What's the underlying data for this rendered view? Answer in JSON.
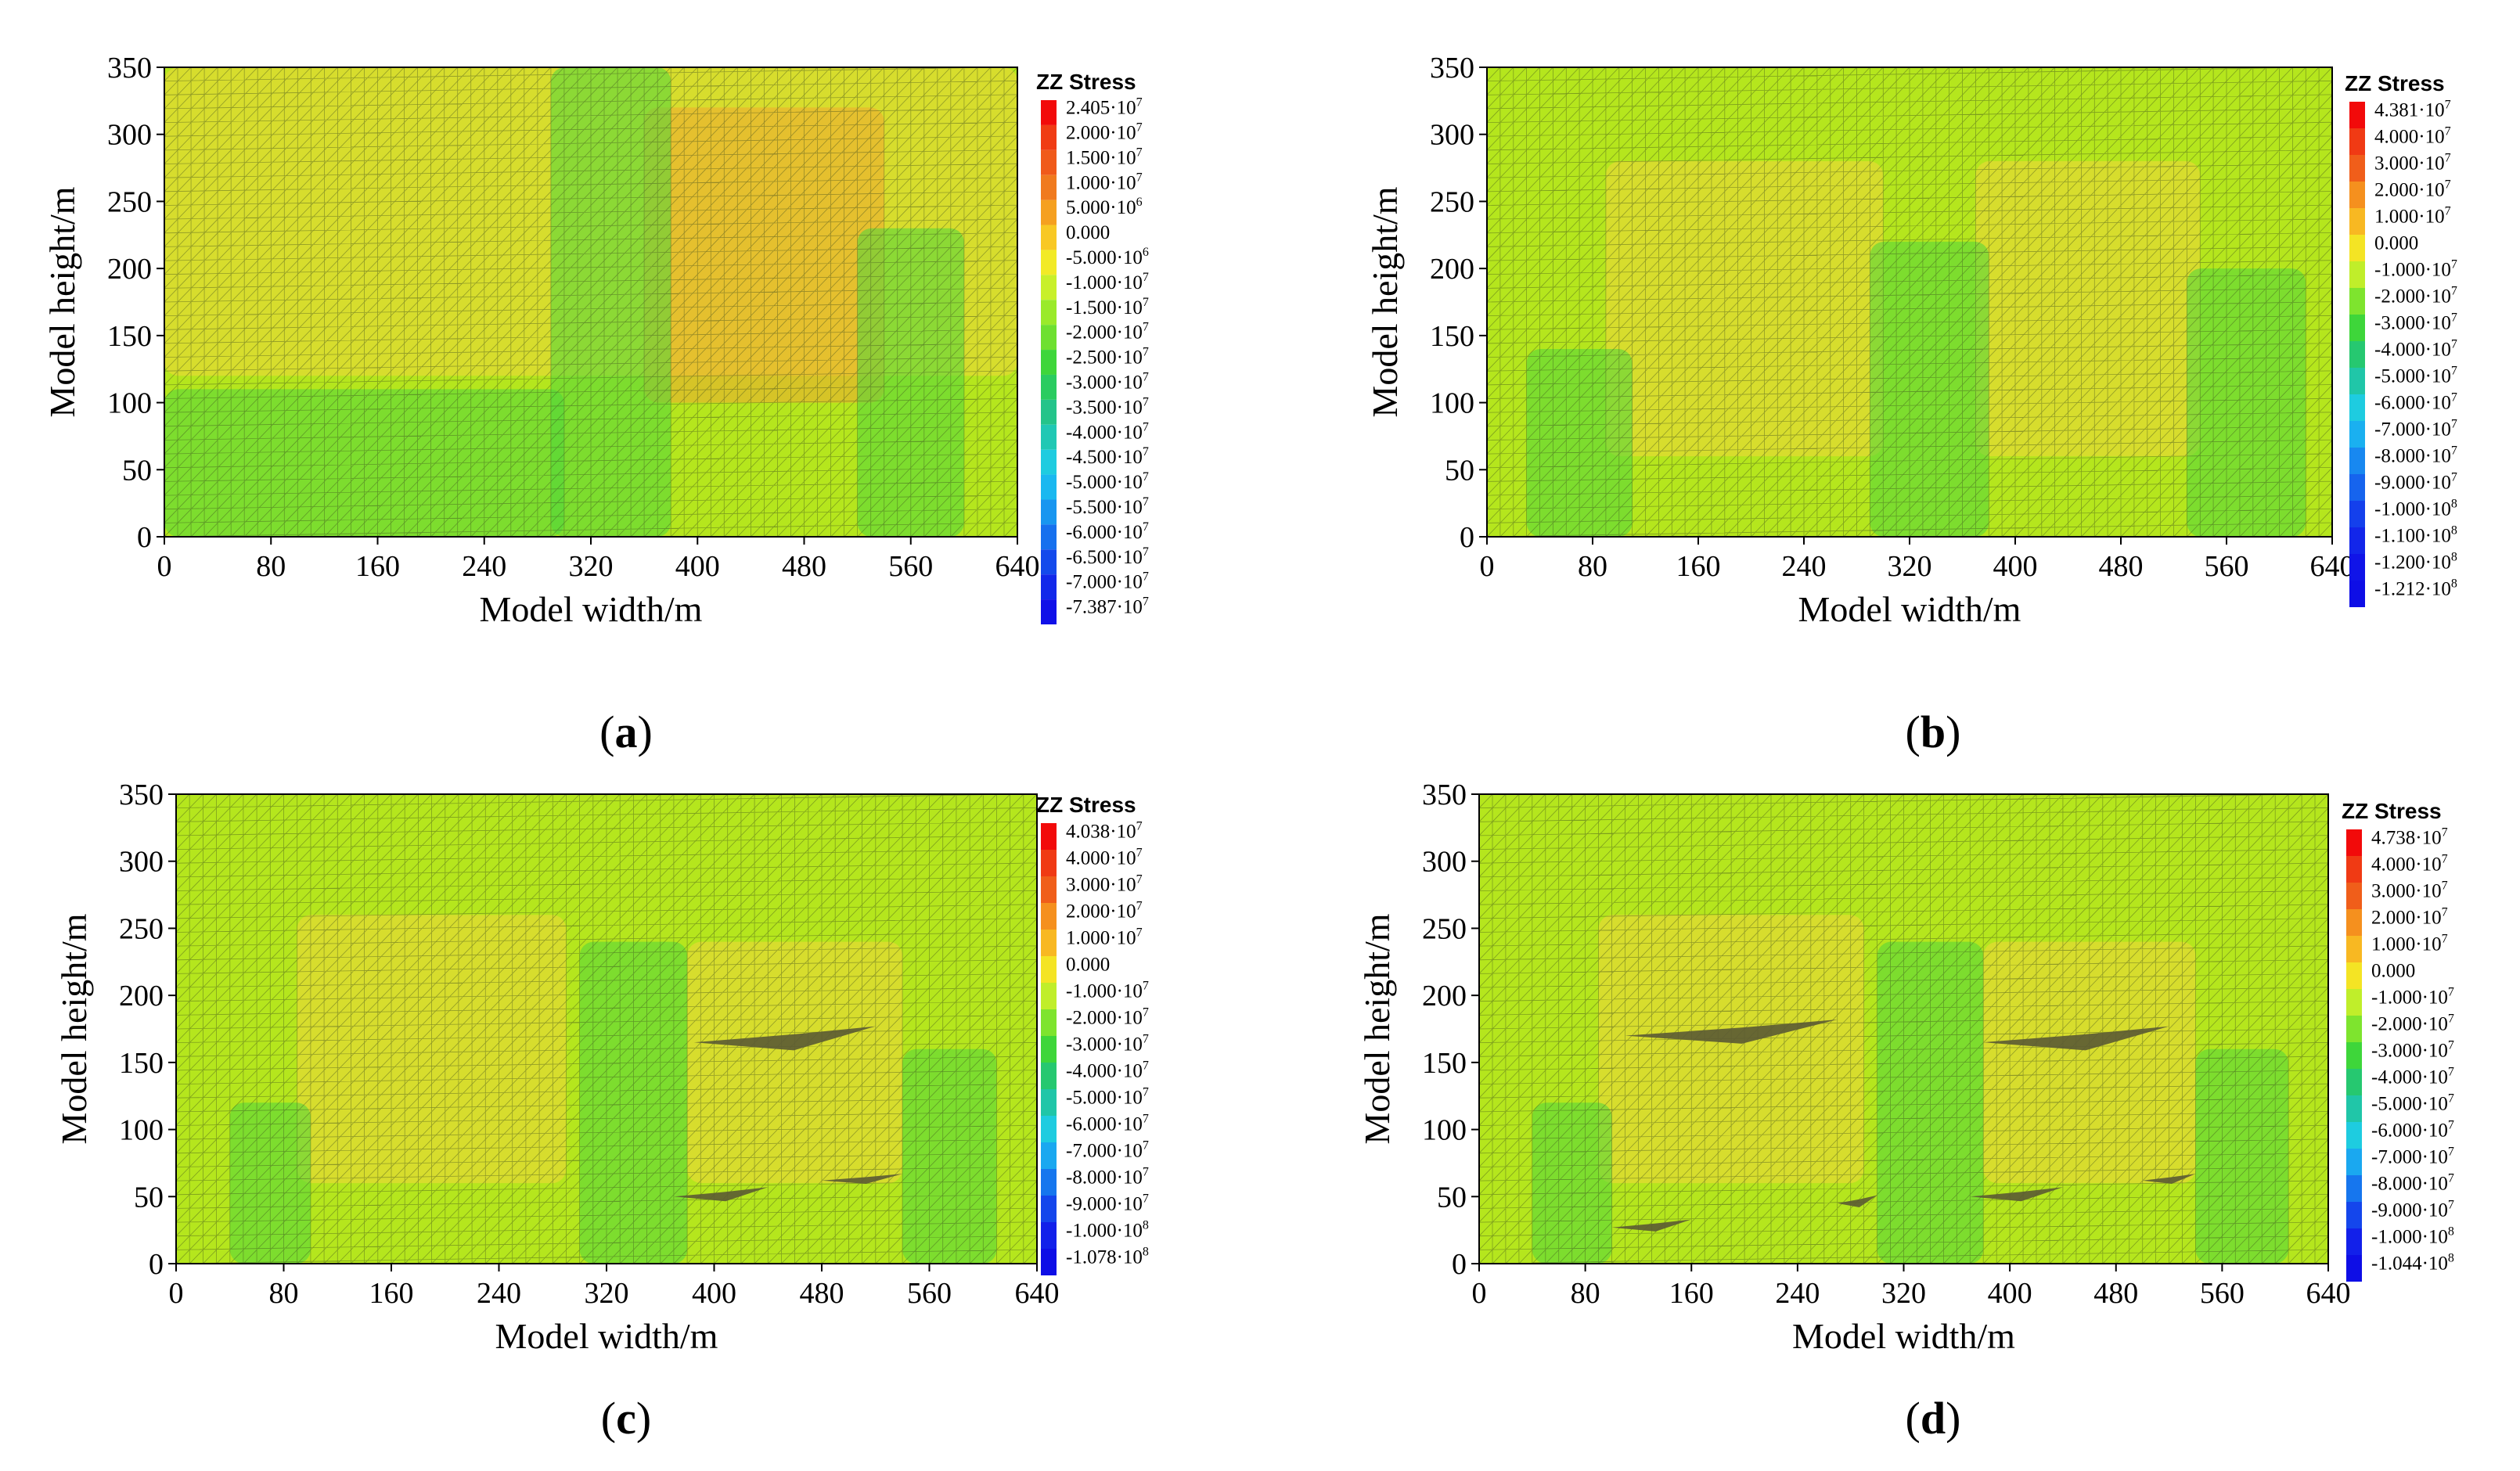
{
  "figure": {
    "background_color": "#ffffff",
    "colors": {
      "field_base": "#b5e61d",
      "field_warm": "#f3d63a",
      "field_hot": "#f0a830",
      "field_cool": "#4fd63c",
      "mesh": "#3a4a20",
      "void": "#5b5a34"
    }
  },
  "chart_data": [
    {
      "id": "a",
      "type": "heatmap",
      "caption_open": "(",
      "caption_letter": "a",
      "caption_close": ")",
      "xlabel": "Model width/m",
      "ylabel": "Model height/m",
      "xlim": [
        0,
        640
      ],
      "ylim": [
        0,
        350
      ],
      "x_ticks": [
        "0",
        "80",
        "160",
        "240",
        "320",
        "400",
        "480",
        "560",
        "640"
      ],
      "y_ticks": [
        "0",
        "50",
        "100",
        "150",
        "200",
        "250",
        "300",
        "350"
      ],
      "legend": {
        "title": "ZZ Stress",
        "labels": [
          {
            "mant": "2.405·10",
            "exp": "7",
            "color": "#f20a0a"
          },
          {
            "mant": "2.000·10",
            "exp": "7",
            "color": "#f03c14"
          },
          {
            "mant": "1.500·10",
            "exp": "7",
            "color": "#f05a1a"
          },
          {
            "mant": "1.000·10",
            "exp": "7",
            "color": "#f07a1e"
          },
          {
            "mant": "5.000·10",
            "exp": "6",
            "color": "#f5a020"
          },
          {
            "mant": "0.000",
            "exp": "",
            "color": "#f8c824"
          },
          {
            "mant": "-5.000·10",
            "exp": "6",
            "color": "#f2ea26"
          },
          {
            "mant": "-1.000·10",
            "exp": "7",
            "color": "#c8f02a"
          },
          {
            "mant": "-1.500·10",
            "exp": "7",
            "color": "#9aea2a"
          },
          {
            "mant": "-2.000·10",
            "exp": "7",
            "color": "#6ee030"
          },
          {
            "mant": "-2.500·10",
            "exp": "7",
            "color": "#3ed63a"
          },
          {
            "mant": "-3.000·10",
            "exp": "7",
            "color": "#2acc60"
          },
          {
            "mant": "-3.500·10",
            "exp": "7",
            "color": "#24c48a"
          },
          {
            "mant": "-4.000·10",
            "exp": "7",
            "color": "#20c8b4"
          },
          {
            "mant": "-4.500·10",
            "exp": "7",
            "color": "#1ecce0"
          },
          {
            "mant": "-5.000·10",
            "exp": "7",
            "color": "#1ab8f0"
          },
          {
            "mant": "-5.500·10",
            "exp": "7",
            "color": "#1896f0"
          },
          {
            "mant": "-6.000·10",
            "exp": "7",
            "color": "#1670ee"
          },
          {
            "mant": "-6.500·10",
            "exp": "7",
            "color": "#144aec"
          },
          {
            "mant": "-7.000·10",
            "exp": "7",
            "color": "#1228ea"
          },
          {
            "mant": "-7.387·10",
            "exp": "7",
            "color": "#1010e8"
          }
        ]
      },
      "zones": [
        {
          "x0": 0,
          "x1": 640,
          "y0": 120,
          "y1": 350,
          "t": "warm"
        },
        {
          "x0": 360,
          "x1": 540,
          "y0": 100,
          "y1": 320,
          "t": "hot"
        },
        {
          "x0": 290,
          "x1": 380,
          "y0": 0,
          "y1": 350,
          "t": "cool"
        },
        {
          "x0": 520,
          "x1": 600,
          "y0": 0,
          "y1": 230,
          "t": "cool"
        },
        {
          "x0": 0,
          "x1": 300,
          "y0": 0,
          "y1": 110,
          "t": "cool"
        }
      ],
      "voids": []
    },
    {
      "id": "b",
      "type": "heatmap",
      "caption_open": "(",
      "caption_letter": "b",
      "caption_close": ")",
      "xlabel": "Model width/m",
      "ylabel": "Model height/m",
      "xlim": [
        0,
        640
      ],
      "ylim": [
        0,
        350
      ],
      "x_ticks": [
        "0",
        "80",
        "160",
        "240",
        "320",
        "400",
        "480",
        "560",
        "640"
      ],
      "y_ticks": [
        "0",
        "50",
        "100",
        "150",
        "200",
        "250",
        "300",
        "350"
      ],
      "legend": {
        "title": "ZZ Stress",
        "labels": [
          {
            "mant": "4.381·10",
            "exp": "7",
            "color": "#f20a0a"
          },
          {
            "mant": "4.000·10",
            "exp": "7",
            "color": "#f03a14"
          },
          {
            "mant": "3.000·10",
            "exp": "7",
            "color": "#f05e1a"
          },
          {
            "mant": "2.000·10",
            "exp": "7",
            "color": "#f5901e"
          },
          {
            "mant": "1.000·10",
            "exp": "7",
            "color": "#f8b822"
          },
          {
            "mant": "0.000",
            "exp": "",
            "color": "#f4e424"
          },
          {
            "mant": "-1.000·10",
            "exp": "7",
            "color": "#c0ee2a"
          },
          {
            "mant": "-2.000·10",
            "exp": "7",
            "color": "#7ee42e"
          },
          {
            "mant": "-3.000·10",
            "exp": "7",
            "color": "#3ed63a"
          },
          {
            "mant": "-4.000·10",
            "exp": "7",
            "color": "#26c870"
          },
          {
            "mant": "-5.000·10",
            "exp": "7",
            "color": "#20c6a8"
          },
          {
            "mant": "-6.000·10",
            "exp": "7",
            "color": "#1ecce0"
          },
          {
            "mant": "-7.000·10",
            "exp": "7",
            "color": "#1ab0f0"
          },
          {
            "mant": "-8.000·10",
            "exp": "7",
            "color": "#1888f0"
          },
          {
            "mant": "-9.000·10",
            "exp": "7",
            "color": "#1664ee"
          },
          {
            "mant": "-1.000·10",
            "exp": "8",
            "color": "#1440ec"
          },
          {
            "mant": "-1.100·10",
            "exp": "8",
            "color": "#1226ea"
          },
          {
            "mant": "-1.200·10",
            "exp": "8",
            "color": "#1014e8"
          },
          {
            "mant": "-1.212·10",
            "exp": "8",
            "color": "#0e0ee6"
          }
        ]
      },
      "zones": [
        {
          "x0": 90,
          "x1": 300,
          "y0": 60,
          "y1": 280,
          "t": "warm"
        },
        {
          "x0": 370,
          "x1": 540,
          "y0": 60,
          "y1": 280,
          "t": "warm"
        },
        {
          "x0": 290,
          "x1": 380,
          "y0": 0,
          "y1": 220,
          "t": "cool"
        },
        {
          "x0": 30,
          "x1": 110,
          "y0": 0,
          "y1": 140,
          "t": "cool"
        },
        {
          "x0": 530,
          "x1": 620,
          "y0": 0,
          "y1": 200,
          "t": "cool"
        }
      ],
      "voids": []
    },
    {
      "id": "c",
      "type": "heatmap",
      "caption_open": "(",
      "caption_letter": "c",
      "caption_close": ")",
      "xlabel": "Model width/m",
      "ylabel": "Model height/m",
      "xlim": [
        0,
        640
      ],
      "ylim": [
        0,
        350
      ],
      "x_ticks": [
        "0",
        "80",
        "160",
        "240",
        "320",
        "400",
        "480",
        "560",
        "640"
      ],
      "y_ticks": [
        "0",
        "50",
        "100",
        "150",
        "200",
        "250",
        "300",
        "350"
      ],
      "legend": {
        "title": "ZZ Stress",
        "labels": [
          {
            "mant": "4.038·10",
            "exp": "7",
            "color": "#f20a0a"
          },
          {
            "mant": "4.000·10",
            "exp": "7",
            "color": "#f03a14"
          },
          {
            "mant": "3.000·10",
            "exp": "7",
            "color": "#f05e1a"
          },
          {
            "mant": "2.000·10",
            "exp": "7",
            "color": "#f5901e"
          },
          {
            "mant": "1.000·10",
            "exp": "7",
            "color": "#f8b822"
          },
          {
            "mant": "0.000",
            "exp": "",
            "color": "#f4e424"
          },
          {
            "mant": "-1.000·10",
            "exp": "7",
            "color": "#c0ee2a"
          },
          {
            "mant": "-2.000·10",
            "exp": "7",
            "color": "#7ee42e"
          },
          {
            "mant": "-3.000·10",
            "exp": "7",
            "color": "#3ed63a"
          },
          {
            "mant": "-4.000·10",
            "exp": "7",
            "color": "#26c870"
          },
          {
            "mant": "-5.000·10",
            "exp": "7",
            "color": "#20c6a8"
          },
          {
            "mant": "-6.000·10",
            "exp": "7",
            "color": "#1ecce0"
          },
          {
            "mant": "-7.000·10",
            "exp": "7",
            "color": "#1aa8f0"
          },
          {
            "mant": "-8.000·10",
            "exp": "7",
            "color": "#1676ee"
          },
          {
            "mant": "-9.000·10",
            "exp": "7",
            "color": "#1446ec"
          },
          {
            "mant": "-1.000·10",
            "exp": "8",
            "color": "#1220ea"
          },
          {
            "mant": "-1.078·10",
            "exp": "8",
            "color": "#0e0ee6"
          }
        ]
      },
      "zones": [
        {
          "x0": 90,
          "x1": 290,
          "y0": 60,
          "y1": 260,
          "t": "warm"
        },
        {
          "x0": 380,
          "x1": 540,
          "y0": 60,
          "y1": 240,
          "t": "warm"
        },
        {
          "x0": 300,
          "x1": 380,
          "y0": 0,
          "y1": 240,
          "t": "cool"
        },
        {
          "x0": 40,
          "x1": 100,
          "y0": 0,
          "y1": 120,
          "t": "cool"
        },
        {
          "x0": 540,
          "x1": 610,
          "y0": 0,
          "y1": 160,
          "t": "cool"
        }
      ],
      "voids": [
        {
          "x0": 385,
          "x1": 520,
          "y": 165,
          "h": 12
        },
        {
          "x0": 370,
          "x1": 440,
          "y": 50,
          "h": 7
        },
        {
          "x0": 480,
          "x1": 540,
          "y": 62,
          "h": 5
        }
      ]
    },
    {
      "id": "d",
      "type": "heatmap",
      "caption_open": "(",
      "caption_letter": "d",
      "caption_close": ")",
      "xlabel": "Model width/m",
      "ylabel": "Model height/m",
      "xlim": [
        0,
        640
      ],
      "ylim": [
        0,
        350
      ],
      "x_ticks": [
        "0",
        "80",
        "160",
        "240",
        "320",
        "400",
        "480",
        "560",
        "640"
      ],
      "y_ticks": [
        "0",
        "50",
        "100",
        "150",
        "200",
        "250",
        "300",
        "350"
      ],
      "legend": {
        "title": "ZZ Stress",
        "labels": [
          {
            "mant": "4.738·10",
            "exp": "7",
            "color": "#f20a0a"
          },
          {
            "mant": "4.000·10",
            "exp": "7",
            "color": "#f03a14"
          },
          {
            "mant": "3.000·10",
            "exp": "7",
            "color": "#f05e1a"
          },
          {
            "mant": "2.000·10",
            "exp": "7",
            "color": "#f5901e"
          },
          {
            "mant": "1.000·10",
            "exp": "7",
            "color": "#f8b822"
          },
          {
            "mant": "0.000",
            "exp": "",
            "color": "#f4e424"
          },
          {
            "mant": "-1.000·10",
            "exp": "7",
            "color": "#c0ee2a"
          },
          {
            "mant": "-2.000·10",
            "exp": "7",
            "color": "#7ee42e"
          },
          {
            "mant": "-3.000·10",
            "exp": "7",
            "color": "#3ed63a"
          },
          {
            "mant": "-4.000·10",
            "exp": "7",
            "color": "#26c870"
          },
          {
            "mant": "-5.000·10",
            "exp": "7",
            "color": "#20c6a8"
          },
          {
            "mant": "-6.000·10",
            "exp": "7",
            "color": "#1ecce0"
          },
          {
            "mant": "-7.000·10",
            "exp": "7",
            "color": "#1aa8f0"
          },
          {
            "mant": "-8.000·10",
            "exp": "7",
            "color": "#1676ee"
          },
          {
            "mant": "-9.000·10",
            "exp": "7",
            "color": "#1446ec"
          },
          {
            "mant": "-1.000·10",
            "exp": "8",
            "color": "#1220ea"
          },
          {
            "mant": "-1.044·10",
            "exp": "8",
            "color": "#0e0ee6"
          }
        ]
      },
      "zones": [
        {
          "x0": 90,
          "x1": 290,
          "y0": 60,
          "y1": 260,
          "t": "warm"
        },
        {
          "x0": 380,
          "x1": 540,
          "y0": 60,
          "y1": 240,
          "t": "warm"
        },
        {
          "x0": 300,
          "x1": 380,
          "y0": 0,
          "y1": 240,
          "t": "cool"
        },
        {
          "x0": 40,
          "x1": 100,
          "y0": 0,
          "y1": 120,
          "t": "cool"
        },
        {
          "x0": 540,
          "x1": 610,
          "y0": 0,
          "y1": 160,
          "t": "cool"
        }
      ],
      "voids": [
        {
          "x0": 110,
          "x1": 270,
          "y": 170,
          "h": 12
        },
        {
          "x0": 380,
          "x1": 520,
          "y": 165,
          "h": 12
        },
        {
          "x0": 100,
          "x1": 160,
          "y": 27,
          "h": 6
        },
        {
          "x0": 270,
          "x1": 300,
          "y": 45,
          "h": 6
        },
        {
          "x0": 370,
          "x1": 440,
          "y": 50,
          "h": 7
        },
        {
          "x0": 500,
          "x1": 540,
          "y": 62,
          "h": 5
        }
      ]
    }
  ]
}
